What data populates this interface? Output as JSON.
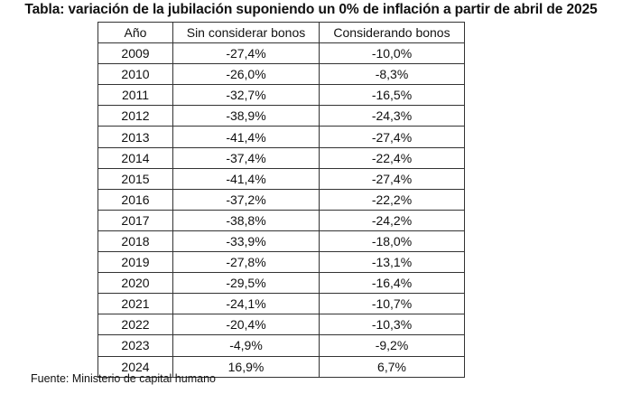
{
  "title": "Tabla: variación de la jubilación suponiendo un 0% de inflación a partir de abril de 2025",
  "source": "Fuente: Ministerio de capital humano",
  "chart_data": {
    "type": "table",
    "title": "Tabla: variación de la jubilación suponiendo un 0% de inflación a partir de abril de 2025",
    "columns": [
      "Año",
      "Sin considerar bonos",
      "Considerando bonos"
    ],
    "rows": [
      [
        "2009",
        "-27,4%",
        "-10,0%"
      ],
      [
        "2010",
        "-26,0%",
        "-8,3%"
      ],
      [
        "2011",
        "-32,7%",
        "-16,5%"
      ],
      [
        "2012",
        "-38,9%",
        "-24,3%"
      ],
      [
        "2013",
        "-41,4%",
        "-27,4%"
      ],
      [
        "2014",
        "-37,4%",
        "-22,4%"
      ],
      [
        "2015",
        "-41,4%",
        "-27,4%"
      ],
      [
        "2016",
        "-37,2%",
        "-22,2%"
      ],
      [
        "2017",
        "-38,8%",
        "-24,2%"
      ],
      [
        "2018",
        "-33,9%",
        "-18,0%"
      ],
      [
        "2019",
        "-27,8%",
        "-13,1%"
      ],
      [
        "2020",
        "-29,5%",
        "-16,4%"
      ],
      [
        "2021",
        "-24,1%",
        "-10,7%"
      ],
      [
        "2022",
        "-20,4%",
        "-10,3%"
      ],
      [
        "2023",
        "-4,9%",
        "-9,2%"
      ],
      [
        "2024",
        "16,9%",
        "6,7%"
      ]
    ]
  }
}
